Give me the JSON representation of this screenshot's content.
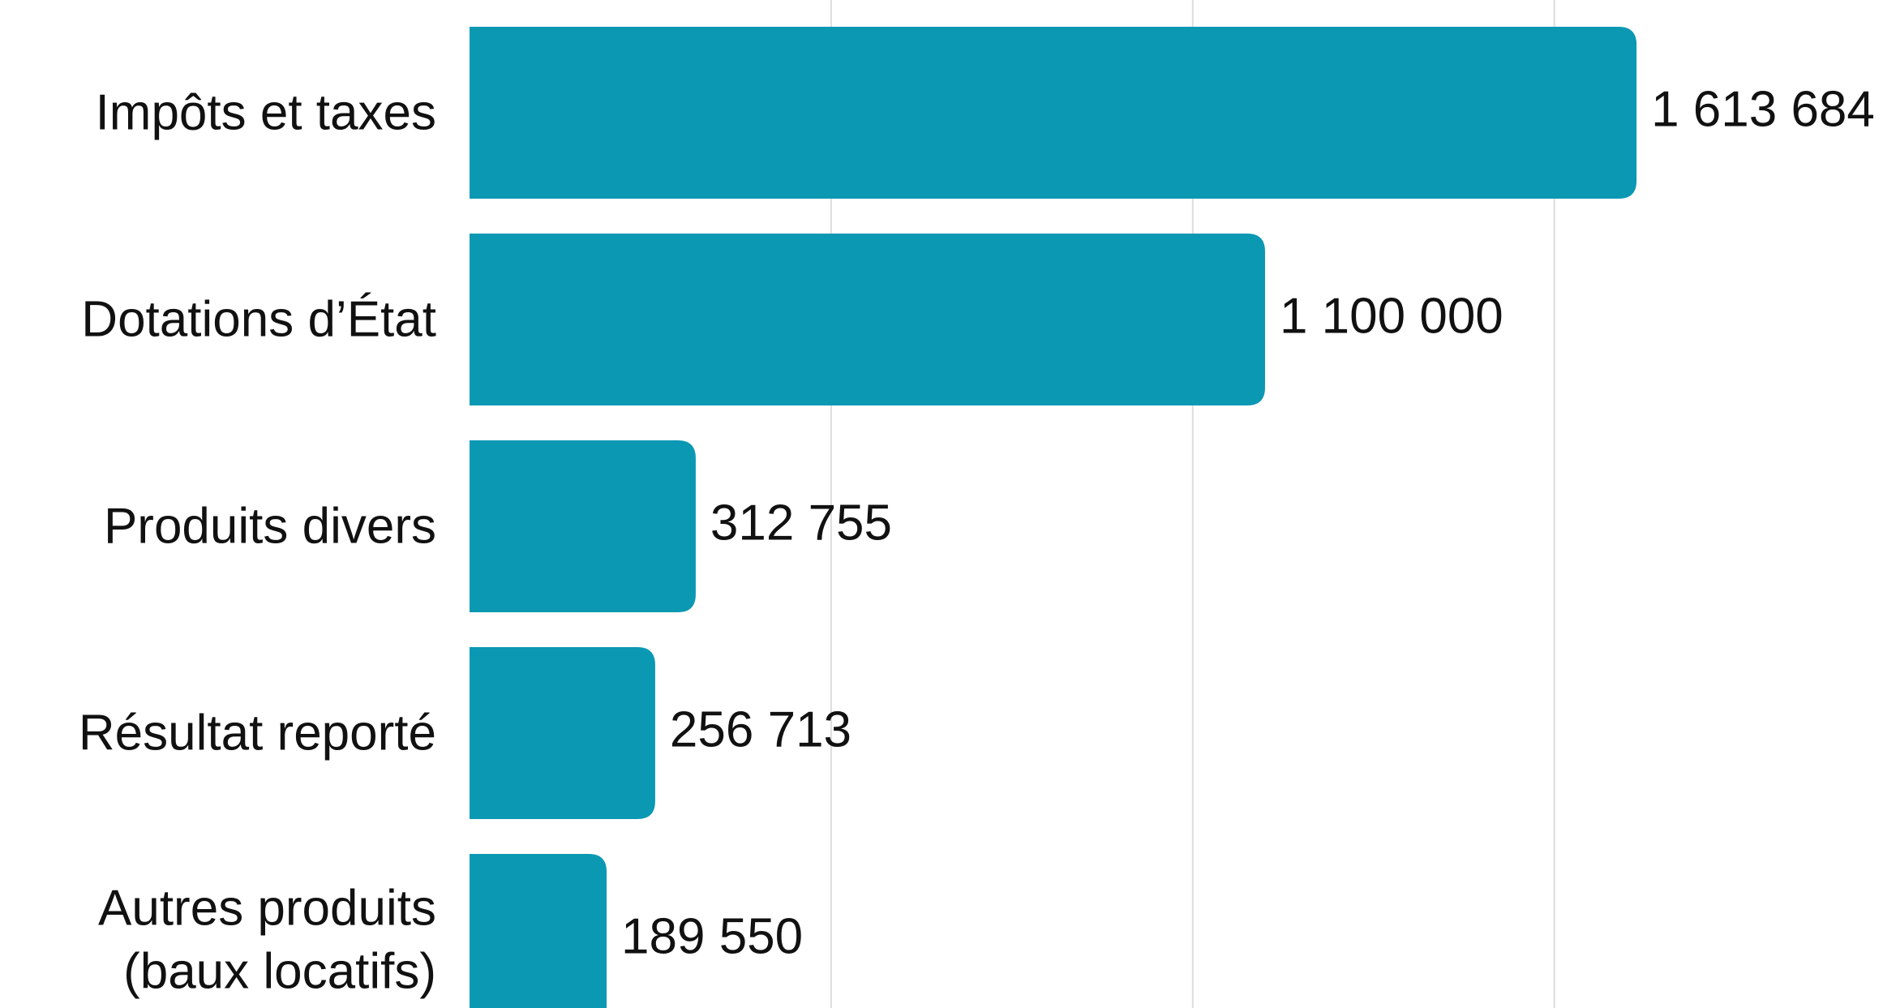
{
  "chart_data": {
    "type": "bar",
    "orientation": "horizontal",
    "categories": [
      "Impôts et taxes",
      "Dotations d’État",
      "Produits divers",
      "Résultat reporté",
      "Autres produits (baux locatifs)"
    ],
    "values": [
      1613684,
      1100000,
      312755,
      256713,
      189550
    ],
    "value_labels": [
      "1 613 684",
      "1 100 000",
      "312 755",
      "256 713",
      "189 550"
    ],
    "color": "#0b98b3",
    "xlim": [
      0,
      1950000
    ],
    "xticks": [
      500000,
      1000000,
      1500000
    ],
    "grid": true
  }
}
